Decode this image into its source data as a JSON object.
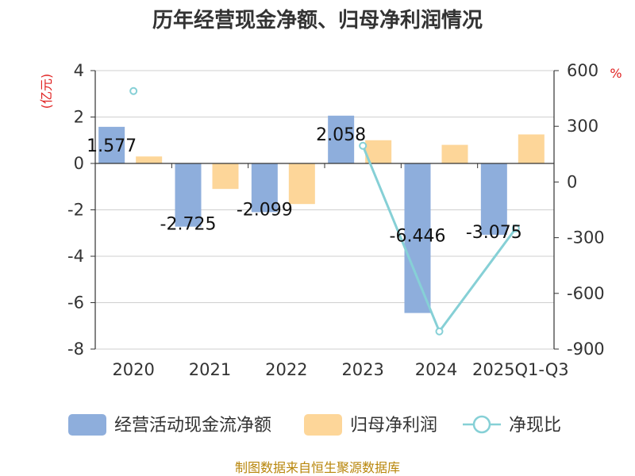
{
  "chart_data": {
    "type": "bar",
    "title": "历年经营现金净额、归母净利润情况",
    "categories": [
      "2020",
      "2021",
      "2022",
      "2023",
      "2024",
      "2025Q1-Q3"
    ],
    "left_axis": {
      "unit": "(亿元)",
      "ylim": [
        -8,
        4
      ],
      "ticks": [
        4,
        2,
        0,
        -2,
        -4,
        -6,
        -8
      ]
    },
    "right_axis": {
      "unit": "%",
      "ylim": [
        -900,
        600
      ],
      "ticks": [
        600,
        300,
        0,
        -300,
        -600,
        -900
      ]
    },
    "series": [
      {
        "name": "经营活动现金流净额",
        "type": "bar",
        "axis": "left",
        "color": "#8eaedc",
        "values": [
          1.577,
          -2.725,
          -2.099,
          2.058,
          -6.446,
          -3.075
        ],
        "labels": [
          "1.577",
          "-2.725",
          "-2.099",
          "2.058",
          "-6.446",
          "-3.075"
        ]
      },
      {
        "name": "归母净利润",
        "type": "bar",
        "axis": "left",
        "color": "#fdd699",
        "values": [
          0.3,
          -1.1,
          -1.75,
          1.0,
          0.8,
          1.25
        ]
      },
      {
        "name": "净现比",
        "type": "line",
        "axis": "right",
        "color": "#86d0d6",
        "values": [
          490,
          null,
          null,
          195,
          -805,
          -250
        ]
      }
    ],
    "grid": true,
    "legend_position": "bottom"
  },
  "source_text": "制图数据来自恒生聚源数据库"
}
